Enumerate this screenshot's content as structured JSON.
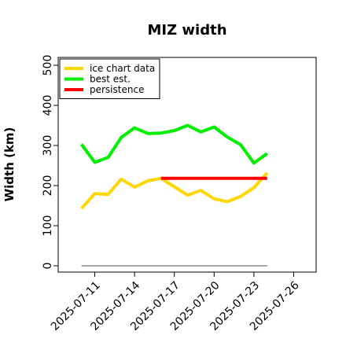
{
  "chart_data": {
    "type": "line",
    "title": "MIZ width",
    "ylabel": "Width (km)",
    "xlabel": "",
    "ylim": [
      0,
      500
    ],
    "yticks": [
      0,
      100,
      200,
      300,
      400,
      500
    ],
    "xlim": [
      "2025-07-08",
      "2025-07-27"
    ],
    "xticks": [
      "2025-07-11",
      "2025-07-14",
      "2025-07-17",
      "2025-07-20",
      "2025-07-23",
      "2025-07-26"
    ],
    "grid": false,
    "legend_position": "top-left",
    "series": [
      {
        "name": "ice chart data",
        "color": "#FFD700",
        "x": [
          "2025-07-10",
          "2025-07-11",
          "2025-07-12",
          "2025-07-13",
          "2025-07-14",
          "2025-07-15",
          "2025-07-16",
          "2025-07-17",
          "2025-07-18",
          "2025-07-19",
          "2025-07-20",
          "2025-07-21",
          "2025-07-22",
          "2025-07-23",
          "2025-07-24"
        ],
        "y": [
          143,
          180,
          178,
          216,
          196,
          212,
          218,
          197,
          176,
          188,
          167,
          160,
          173,
          195,
          232
        ]
      },
      {
        "name": "best est.",
        "color": "#00EE00",
        "x": [
          "2025-07-10",
          "2025-07-11",
          "2025-07-12",
          "2025-07-13",
          "2025-07-14",
          "2025-07-15",
          "2025-07-16",
          "2025-07-17",
          "2025-07-18",
          "2025-07-19",
          "2025-07-20",
          "2025-07-21",
          "2025-07-22",
          "2025-07-23",
          "2025-07-24"
        ],
        "y": [
          303,
          258,
          270,
          320,
          344,
          330,
          331,
          337,
          350,
          334,
          346,
          321,
          302,
          256,
          280
        ]
      },
      {
        "name": "persistence",
        "color": "#FF0000",
        "x": [
          "2025-07-16",
          "2025-07-24"
        ],
        "y": [
          218,
          218
        ]
      },
      {
        "name": "",
        "color": "#888888",
        "x": [
          "2025-07-10",
          "2025-07-24"
        ],
        "y": [
          0,
          0
        ]
      }
    ]
  }
}
